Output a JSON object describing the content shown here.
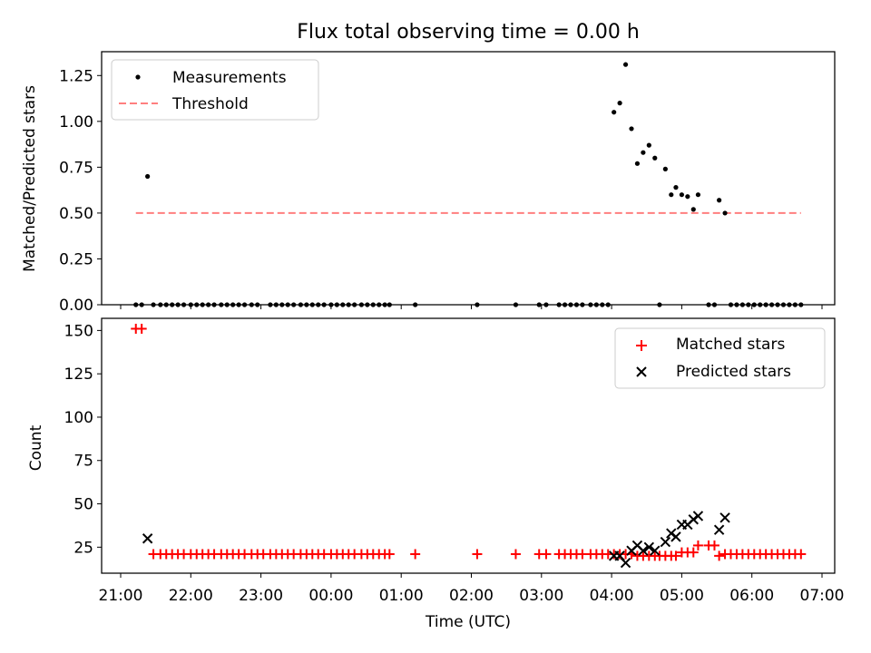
{
  "title": "Flux total observing time = 0.00 h",
  "chart_data": [
    {
      "type": "scatter",
      "ylabel": "Matched/Predicted stars",
      "ylim": [
        0,
        1.38
      ],
      "yticks": [
        0,
        0.25,
        0.5,
        0.75,
        1.0,
        1.25
      ],
      "ytick_labels": [
        "0.00",
        "0.25",
        "0.50",
        "0.75",
        "1.00",
        "1.25"
      ],
      "legend_position": "top-left",
      "threshold": {
        "name": "Threshold",
        "value": 0.5,
        "x_start": "21:13",
        "x_end": "06:42",
        "color": "#ff7f7f"
      },
      "series": [
        {
          "name": "Measurements",
          "color": "#000000",
          "points": [
            [
              "21:13",
              0
            ],
            [
              "21:18",
              0
            ],
            [
              "21:23",
              0.7
            ],
            [
              "21:28",
              0
            ],
            [
              "21:34",
              0
            ],
            [
              "21:39",
              0
            ],
            [
              "21:44",
              0
            ],
            [
              "21:49",
              0
            ],
            [
              "21:54",
              0
            ],
            [
              "22:00",
              0
            ],
            [
              "22:05",
              0
            ],
            [
              "22:10",
              0
            ],
            [
              "22:15",
              0
            ],
            [
              "22:20",
              0
            ],
            [
              "22:26",
              0
            ],
            [
              "22:31",
              0
            ],
            [
              "22:36",
              0
            ],
            [
              "22:41",
              0
            ],
            [
              "22:46",
              0
            ],
            [
              "22:52",
              0
            ],
            [
              "22:57",
              0
            ],
            [
              "23:08",
              0
            ],
            [
              "23:13",
              0
            ],
            [
              "23:18",
              0
            ],
            [
              "23:23",
              0
            ],
            [
              "23:28",
              0
            ],
            [
              "23:34",
              0
            ],
            [
              "23:39",
              0
            ],
            [
              "23:44",
              0
            ],
            [
              "23:49",
              0
            ],
            [
              "23:54",
              0
            ],
            [
              "00:00",
              0
            ],
            [
              "00:05",
              0
            ],
            [
              "00:10",
              0
            ],
            [
              "00:15",
              0
            ],
            [
              "00:20",
              0
            ],
            [
              "00:26",
              0
            ],
            [
              "00:31",
              0
            ],
            [
              "00:36",
              0
            ],
            [
              "00:41",
              0
            ],
            [
              "00:46",
              0
            ],
            [
              "00:50",
              0
            ],
            [
              "01:12",
              0
            ],
            [
              "02:05",
              0
            ],
            [
              "02:38",
              0
            ],
            [
              "02:58",
              0
            ],
            [
              "03:04",
              0
            ],
            [
              "03:15",
              0
            ],
            [
              "03:20",
              0
            ],
            [
              "03:25",
              0
            ],
            [
              "03:30",
              0
            ],
            [
              "03:35",
              0
            ],
            [
              "03:42",
              0
            ],
            [
              "03:47",
              0
            ],
            [
              "03:52",
              0
            ],
            [
              "03:57",
              0
            ],
            [
              "04:02",
              1.05
            ],
            [
              "04:07",
              1.1
            ],
            [
              "04:12",
              1.31
            ],
            [
              "04:17",
              0.96
            ],
            [
              "04:22",
              0.77
            ],
            [
              "04:27",
              0.83
            ],
            [
              "04:32",
              0.87
            ],
            [
              "04:37",
              0.8
            ],
            [
              "04:41",
              0
            ],
            [
              "04:46",
              0.74
            ],
            [
              "04:51",
              0.6
            ],
            [
              "04:55",
              0.64
            ],
            [
              "05:00",
              0.6
            ],
            [
              "05:05",
              0.59
            ],
            [
              "05:10",
              0.52
            ],
            [
              "05:14",
              0.6
            ],
            [
              "05:23",
              0
            ],
            [
              "05:28",
              0
            ],
            [
              "05:32",
              0.57
            ],
            [
              "05:37",
              0.5
            ],
            [
              "05:42",
              0
            ],
            [
              "05:47",
              0
            ],
            [
              "05:52",
              0
            ],
            [
              "05:57",
              0
            ],
            [
              "06:02",
              0
            ],
            [
              "06:07",
              0
            ],
            [
              "06:12",
              0
            ],
            [
              "06:17",
              0
            ],
            [
              "06:22",
              0
            ],
            [
              "06:27",
              0
            ],
            [
              "06:32",
              0
            ],
            [
              "06:37",
              0
            ],
            [
              "06:42",
              0
            ]
          ]
        }
      ]
    },
    {
      "type": "scatter",
      "xlabel": "Time (UTC)",
      "ylabel": "Count",
      "ylim": [
        10,
        157
      ],
      "yticks": [
        25,
        50,
        75,
        100,
        125,
        150
      ],
      "ytick_labels": [
        "25",
        "50",
        "75",
        "100",
        "125",
        "150"
      ],
      "xticks": [
        "21:00",
        "22:00",
        "23:00",
        "00:00",
        "01:00",
        "02:00",
        "03:00",
        "04:00",
        "05:00",
        "06:00",
        "07:00"
      ],
      "legend_position": "top-right",
      "series": [
        {
          "name": "Matched stars",
          "marker": "plus",
          "color": "#ff0000",
          "points": [
            [
              "21:13",
              151
            ],
            [
              "21:18",
              151
            ],
            [
              "21:28",
              21
            ],
            [
              "21:34",
              21
            ],
            [
              "21:39",
              21
            ],
            [
              "21:44",
              21
            ],
            [
              "21:49",
              21
            ],
            [
              "21:54",
              21
            ],
            [
              "22:00",
              21
            ],
            [
              "22:05",
              21
            ],
            [
              "22:10",
              21
            ],
            [
              "22:15",
              21
            ],
            [
              "22:20",
              21
            ],
            [
              "22:26",
              21
            ],
            [
              "22:31",
              21
            ],
            [
              "22:36",
              21
            ],
            [
              "22:41",
              21
            ],
            [
              "22:46",
              21
            ],
            [
              "22:52",
              21
            ],
            [
              "22:57",
              21
            ],
            [
              "23:02",
              21
            ],
            [
              "23:08",
              21
            ],
            [
              "23:13",
              21
            ],
            [
              "23:18",
              21
            ],
            [
              "23:23",
              21
            ],
            [
              "23:28",
              21
            ],
            [
              "23:34",
              21
            ],
            [
              "23:39",
              21
            ],
            [
              "23:44",
              21
            ],
            [
              "23:49",
              21
            ],
            [
              "23:54",
              21
            ],
            [
              "00:00",
              21
            ],
            [
              "00:05",
              21
            ],
            [
              "00:10",
              21
            ],
            [
              "00:15",
              21
            ],
            [
              "00:20",
              21
            ],
            [
              "00:26",
              21
            ],
            [
              "00:31",
              21
            ],
            [
              "00:36",
              21
            ],
            [
              "00:41",
              21
            ],
            [
              "00:46",
              21
            ],
            [
              "00:50",
              21
            ],
            [
              "01:12",
              21
            ],
            [
              "02:05",
              21
            ],
            [
              "02:38",
              21
            ],
            [
              "02:58",
              21
            ],
            [
              "03:04",
              21
            ],
            [
              "03:15",
              21
            ],
            [
              "03:20",
              21
            ],
            [
              "03:25",
              21
            ],
            [
              "03:30",
              21
            ],
            [
              "03:35",
              21
            ],
            [
              "03:42",
              21
            ],
            [
              "03:47",
              21
            ],
            [
              "03:52",
              21
            ],
            [
              "03:57",
              21
            ],
            [
              "04:02",
              21
            ],
            [
              "04:07",
              21
            ],
            [
              "04:12",
              21
            ],
            [
              "04:17",
              21
            ],
            [
              "04:22",
              20
            ],
            [
              "04:27",
              20
            ],
            [
              "04:32",
              20
            ],
            [
              "04:37",
              20
            ],
            [
              "04:41",
              20
            ],
            [
              "04:46",
              20
            ],
            [
              "04:51",
              20
            ],
            [
              "04:55",
              20
            ],
            [
              "05:00",
              22
            ],
            [
              "05:05",
              22
            ],
            [
              "05:10",
              22
            ],
            [
              "05:14",
              26
            ],
            [
              "05:23",
              26
            ],
            [
              "05:28",
              26
            ],
            [
              "05:32",
              20
            ],
            [
              "05:37",
              21
            ],
            [
              "05:42",
              21
            ],
            [
              "05:47",
              21
            ],
            [
              "05:52",
              21
            ],
            [
              "05:57",
              21
            ],
            [
              "06:02",
              21
            ],
            [
              "06:07",
              21
            ],
            [
              "06:12",
              21
            ],
            [
              "06:17",
              21
            ],
            [
              "06:22",
              21
            ],
            [
              "06:27",
              21
            ],
            [
              "06:32",
              21
            ],
            [
              "06:37",
              21
            ],
            [
              "06:42",
              21
            ]
          ]
        },
        {
          "name": "Predicted stars",
          "marker": "x",
          "color": "#000000",
          "points": [
            [
              "21:23",
              30
            ],
            [
              "04:02",
              20
            ],
            [
              "04:07",
              20
            ],
            [
              "04:12",
              16
            ],
            [
              "04:17",
              23
            ],
            [
              "04:22",
              26
            ],
            [
              "04:27",
              23
            ],
            [
              "04:32",
              25
            ],
            [
              "04:37",
              23
            ],
            [
              "04:46",
              28
            ],
            [
              "04:51",
              33
            ],
            [
              "04:55",
              31
            ],
            [
              "05:00",
              38
            ],
            [
              "05:05",
              38
            ],
            [
              "05:10",
              41
            ],
            [
              "05:14",
              43
            ],
            [
              "05:32",
              35
            ],
            [
              "05:37",
              42
            ]
          ]
        }
      ]
    }
  ]
}
